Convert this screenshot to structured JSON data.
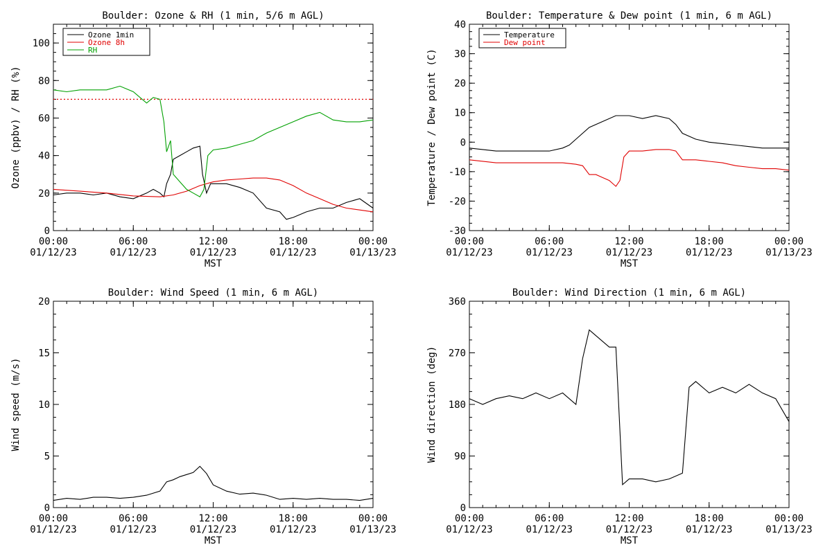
{
  "colors": {
    "black": "#000000",
    "red": "#e00000",
    "green": "#00a000",
    "background": "#ffffff"
  },
  "chart_data": [
    {
      "type": "line",
      "title": "Boulder: Ozone & RH (1 min, 5/6 m AGL)",
      "xlabel": "MST",
      "ylabel": "Ozone (ppbv) / RH (%)",
      "xlim": [
        0,
        24
      ],
      "ylim": [
        0,
        110
      ],
      "yticks": [
        0,
        20,
        40,
        60,
        80,
        100
      ],
      "xtick_times": [
        "00:00",
        "06:00",
        "12:00",
        "18:00",
        "00:00"
      ],
      "xtick_dates": [
        "01/12/23",
        "01/12/23",
        "01/12/23",
        "01/12/23",
        "01/13/23"
      ],
      "legend_position": "top-left",
      "reference_line": {
        "y": 70,
        "color": "#e00000",
        "style": "dotted"
      },
      "series": [
        {
          "name": "Ozone 1min",
          "color": "#000000",
          "x": [
            0,
            1,
            2,
            3,
            4,
            5,
            6,
            7,
            7.5,
            8,
            8.3,
            8.5,
            8.8,
            9,
            9.5,
            10,
            10.5,
            11,
            11.2,
            11.5,
            11.8,
            12,
            13,
            14,
            15,
            16,
            17,
            17.5,
            18,
            19,
            20,
            21,
            22,
            23,
            24
          ],
          "y": [
            19,
            20,
            20,
            19,
            20,
            18,
            17,
            20,
            22,
            20,
            18,
            25,
            30,
            38,
            40,
            42,
            44,
            45,
            30,
            20,
            25,
            25,
            25,
            23,
            20,
            12,
            10,
            6,
            7,
            10,
            12,
            12,
            15,
            17,
            12
          ]
        },
        {
          "name": "Ozone 8h",
          "color": "#e00000",
          "x": [
            0,
            2,
            4,
            6,
            8,
            9,
            10,
            11,
            12,
            13,
            14,
            15,
            16,
            17,
            18,
            19,
            20,
            21,
            22,
            23,
            24
          ],
          "y": [
            22,
            21,
            20,
            18.5,
            18,
            19,
            21,
            24,
            26,
            27,
            27.5,
            28,
            28,
            27,
            24,
            20,
            17,
            14,
            12,
            11,
            10
          ]
        },
        {
          "name": "RH",
          "color": "#00a000",
          "x": [
            0,
            1,
            2,
            3,
            4,
            5,
            6,
            6.5,
            7,
            7.5,
            8,
            8.3,
            8.5,
            8.8,
            9,
            9.5,
            10,
            10.5,
            11,
            11.3,
            11.6,
            12,
            13,
            14,
            15,
            16,
            17,
            18,
            19,
            20,
            21,
            22,
            23,
            24
          ],
          "y": [
            75,
            74,
            75,
            75,
            75,
            77,
            74,
            71,
            68,
            71,
            70,
            58,
            42,
            48,
            30,
            26,
            22,
            20,
            18,
            22,
            40,
            43,
            44,
            46,
            48,
            52,
            55,
            58,
            61,
            63,
            59,
            58,
            58,
            59
          ]
        }
      ]
    },
    {
      "type": "line",
      "title": "Boulder: Temperature & Dew point (1 min, 6 m AGL)",
      "xlabel": "MST",
      "ylabel": "Temperature / Dew point (C)",
      "xlim": [
        0,
        24
      ],
      "ylim": [
        -30,
        40
      ],
      "yticks": [
        -30,
        -20,
        -10,
        0,
        10,
        20,
        30,
        40
      ],
      "xtick_times": [
        "00:00",
        "06:00",
        "12:00",
        "18:00",
        "00:00"
      ],
      "xtick_dates": [
        "01/12/23",
        "01/12/23",
        "01/12/23",
        "01/12/23",
        "01/13/23"
      ],
      "legend_position": "top-left",
      "series": [
        {
          "name": "Temperature",
          "color": "#000000",
          "x": [
            0,
            2,
            4,
            6,
            7,
            7.5,
            8,
            9,
            10,
            11,
            12,
            13,
            14,
            15,
            15.5,
            16,
            17,
            18,
            19,
            20,
            21,
            22,
            23,
            24
          ],
          "y": [
            -2,
            -3,
            -3,
            -3,
            -2,
            -1,
            1,
            5,
            7,
            9,
            9,
            8,
            9,
            8,
            6,
            3,
            1,
            0,
            -0.5,
            -1,
            -1.5,
            -2,
            -2,
            -2
          ]
        },
        {
          "name": "Dew point",
          "color": "#e00000",
          "x": [
            0,
            2,
            4,
            6,
            7,
            8,
            8.5,
            9,
            9.5,
            10,
            10.5,
            11,
            11.3,
            11.6,
            12,
            13,
            14,
            15,
            15.5,
            16,
            17,
            18,
            19,
            20,
            21,
            22,
            23,
            24
          ],
          "y": [
            -6,
            -7,
            -7,
            -7,
            -7,
            -7.5,
            -8,
            -11,
            -11,
            -12,
            -13,
            -15,
            -13,
            -5,
            -3,
            -3,
            -2.5,
            -2.5,
            -3,
            -6,
            -6,
            -6.5,
            -7,
            -8,
            -8.5,
            -9,
            -9,
            -9.5
          ]
        }
      ]
    },
    {
      "type": "line",
      "title": "Boulder: Wind Speed (1 min, 6 m AGL)",
      "xlabel": "MST",
      "ylabel": "Wind speed (m/s)",
      "xlim": [
        0,
        24
      ],
      "ylim": [
        0,
        20
      ],
      "yticks": [
        0,
        5,
        10,
        15,
        20
      ],
      "xtick_times": [
        "00:00",
        "06:00",
        "12:00",
        "18:00",
        "00:00"
      ],
      "xtick_dates": [
        "01/12/23",
        "01/12/23",
        "01/12/23",
        "01/12/23",
        "01/13/23"
      ],
      "series": [
        {
          "name": "",
          "color": "#000000",
          "x": [
            0,
            1,
            2,
            3,
            4,
            5,
            6,
            7,
            8,
            8.5,
            9,
            9.5,
            10,
            10.5,
            11,
            11.5,
            12,
            13,
            14,
            15,
            16,
            17,
            18,
            19,
            20,
            21,
            22,
            23,
            24
          ],
          "y": [
            0.7,
            0.9,
            0.8,
            1.0,
            1.0,
            0.9,
            1.0,
            1.2,
            1.6,
            2.5,
            2.7,
            3.0,
            3.2,
            3.4,
            4.0,
            3.3,
            2.2,
            1.6,
            1.3,
            1.4,
            1.2,
            0.8,
            0.9,
            0.8,
            0.9,
            0.8,
            0.8,
            0.7,
            0.9
          ]
        }
      ]
    },
    {
      "type": "line",
      "title": "Boulder: Wind Direction (1 min, 6 m AGL)",
      "xlabel": "MST",
      "ylabel": "Wind direction (deg)",
      "xlim": [
        0,
        24
      ],
      "ylim": [
        0,
        360
      ],
      "yticks": [
        0,
        90,
        180,
        270,
        360
      ],
      "xtick_times": [
        "00:00",
        "06:00",
        "12:00",
        "18:00",
        "00:00"
      ],
      "xtick_dates": [
        "01/12/23",
        "01/12/23",
        "01/12/23",
        "01/12/23",
        "01/13/23"
      ],
      "series": [
        {
          "name": "",
          "color": "#000000",
          "x": [
            0,
            1,
            2,
            3,
            4,
            5,
            6,
            7,
            8,
            8.5,
            9,
            9.5,
            10,
            10.5,
            11,
            11.5,
            12,
            13,
            14,
            15,
            16,
            16.5,
            17,
            18,
            19,
            20,
            21,
            22,
            23,
            24
          ],
          "y": [
            190,
            180,
            190,
            195,
            190,
            200,
            190,
            200,
            180,
            260,
            310,
            300,
            290,
            280,
            280,
            40,
            50,
            50,
            45,
            50,
            60,
            210,
            220,
            200,
            210,
            200,
            215,
            200,
            190,
            150
          ]
        }
      ]
    }
  ]
}
